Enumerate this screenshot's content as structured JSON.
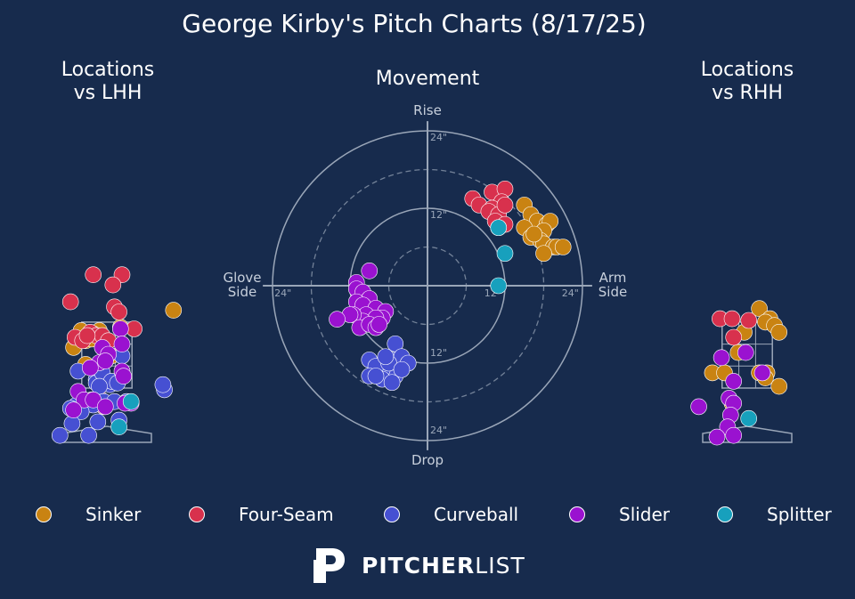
{
  "title": "George Kirby's Pitch Charts (8/17/25)",
  "colors": {
    "background": "#172b4d",
    "Sinker": "#c98312",
    "Four-Seam": "#d8314d",
    "Curveball": "#4650d2",
    "Slider": "#9a12d0",
    "Splitter": "#17a0bd",
    "grid": "#9aa6b8"
  },
  "panels": {
    "lhh_title": "Locations\nvs LHH",
    "movement_title": "Movement",
    "rhh_title": "Locations\nvs RHH"
  },
  "movement_labels": {
    "top": "Rise",
    "bottom": "Drop",
    "left": "Glove\nSide",
    "right": "Arm\nSide",
    "ring_12_top": "12\"",
    "ring_24_top": "24\"",
    "ring_12_bottom": "12\"",
    "ring_24_bottom": "24\"",
    "ring_24_left": "24\"",
    "ring_24_right": "24\"",
    "ring_12_right": "12\""
  },
  "legend": [
    {
      "name": "Sinker"
    },
    {
      "name": "Four-Seam"
    },
    {
      "name": "Curveball"
    },
    {
      "name": "Slider"
    },
    {
      "name": "Splitter"
    }
  ],
  "logo": {
    "bold": "PITCHER",
    "light": "LIST"
  },
  "chart_data": [
    {
      "type": "scatter",
      "title": "Locations\nvs LHH",
      "units": "feet",
      "xlim": [
        -2.45,
        2.45
      ],
      "ylim": [
        -0.25,
        5.1
      ],
      "series": [
        {
          "name": "Sinker",
          "points": [
            [
              -0.85,
              3.2
            ],
            [
              2.2,
              3.8
            ],
            [
              0.45,
              3.3
            ],
            [
              -0.25,
              3.2
            ],
            [
              -0.45,
              3.1
            ],
            [
              -0.3,
              3.0
            ],
            [
              -0.6,
              2.95
            ],
            [
              -1.1,
              2.7
            ],
            [
              -0.7,
              2.9
            ],
            [
              -0.5,
              2.95
            ],
            [
              0.15,
              2.45
            ],
            [
              -0.05,
              2.3
            ],
            [
              -0.7,
              2.2
            ],
            [
              -0.5,
              1.15
            ]
          ]
        },
        {
          "name": "Four-Seam",
          "points": [
            [
              -0.45,
              4.85
            ],
            [
              0.5,
              4.85
            ],
            [
              0.2,
              4.55
            ],
            [
              -1.2,
              4.05
            ],
            [
              0.25,
              3.9
            ],
            [
              0.4,
              3.75
            ],
            [
              -1.05,
              3.0
            ],
            [
              -0.55,
              3.15
            ],
            [
              -0.35,
              3.05
            ],
            [
              -0.15,
              3.05
            ],
            [
              0.05,
              2.9
            ],
            [
              -0.8,
              2.9
            ],
            [
              -0.65,
              3.05
            ],
            [
              0.9,
              3.25
            ],
            [
              -0.25,
              1.2
            ],
            [
              -0.1,
              0.95
            ]
          ]
        },
        {
          "name": "Curveball",
          "points": [
            [
              -0.95,
              2.0
            ],
            [
              -0.35,
              1.75
            ],
            [
              -0.1,
              1.8
            ],
            [
              0.1,
              1.6
            ],
            [
              -0.35,
              1.65
            ],
            [
              0.4,
              1.75
            ],
            [
              0.5,
              2.45
            ],
            [
              -0.15,
              1.95
            ],
            [
              0.15,
              1.7
            ],
            [
              0.35,
              1.65
            ],
            [
              1.9,
              1.45
            ],
            [
              1.85,
              1.6
            ],
            [
              -0.25,
              1.55
            ],
            [
              -1.0,
              1.0
            ],
            [
              -0.65,
              1.05
            ],
            [
              -0.45,
              1.0
            ],
            [
              -0.1,
              1.1
            ],
            [
              0.25,
              1.1
            ],
            [
              0.65,
              1.1
            ],
            [
              -1.2,
              0.9
            ],
            [
              -0.85,
              0.8
            ],
            [
              -1.15,
              0.45
            ],
            [
              -0.3,
              0.5
            ],
            [
              0.4,
              0.55
            ],
            [
              -1.55,
              0.1
            ],
            [
              -0.6,
              0.1
            ]
          ]
        },
        {
          "name": "Slider",
          "points": [
            [
              0.45,
              3.25
            ],
            [
              0.5,
              2.8
            ],
            [
              -0.15,
              2.7
            ],
            [
              0.05,
              2.5
            ],
            [
              -0.25,
              2.25
            ],
            [
              -0.05,
              2.3
            ],
            [
              -0.55,
              2.1
            ],
            [
              0.5,
              2.0
            ],
            [
              0.55,
              1.85
            ],
            [
              -0.95,
              1.4
            ],
            [
              -0.75,
              1.15
            ],
            [
              -0.45,
              1.15
            ],
            [
              0.8,
              1.05
            ],
            [
              0.6,
              1.05
            ],
            [
              -0.05,
              0.95
            ],
            [
              -1.1,
              0.85
            ]
          ]
        },
        {
          "name": "Splitter",
          "points": [
            [
              0.8,
              1.1
            ],
            [
              0.4,
              0.35
            ]
          ]
        }
      ]
    },
    {
      "type": "scatter",
      "title": "Movement",
      "xlabel": "Glove Side / Arm Side (inches)",
      "ylabel": "Drop / Rise (inches)",
      "xlim": [
        -24,
        24
      ],
      "ylim": [
        -24,
        24
      ],
      "series": [
        {
          "name": "Sinker",
          "points": [
            [
              15,
              12.5
            ],
            [
              16,
              11
            ],
            [
              17,
              10
            ],
            [
              18.5,
              9.5
            ],
            [
              19,
              10
            ],
            [
              18,
              8.5
            ],
            [
              15,
              9
            ],
            [
              16,
              7.5
            ],
            [
              17.5,
              7
            ],
            [
              18,
              6.5
            ],
            [
              19.5,
              6
            ],
            [
              16.5,
              8
            ],
            [
              20,
              6
            ],
            [
              18,
              5
            ],
            [
              21,
              6
            ]
          ]
        },
        {
          "name": "Four-Seam",
          "points": [
            [
              7,
              13.5
            ],
            [
              8,
              12.5
            ],
            [
              10,
              14.5
            ],
            [
              12,
              15
            ],
            [
              11.5,
              13
            ],
            [
              10,
              12
            ],
            [
              9.5,
              11.5
            ],
            [
              11,
              11
            ],
            [
              12,
              12.5
            ],
            [
              10.5,
              10
            ],
            [
              12,
              9.5
            ],
            [
              11,
              9
            ]
          ]
        },
        {
          "name": "Curveball",
          "points": [
            [
              -5,
              -9
            ],
            [
              -5,
              -11.5
            ],
            [
              -4,
              -11
            ],
            [
              -3,
              -12
            ],
            [
              -5,
              -14
            ],
            [
              -7,
              -13
            ],
            [
              -9,
              -11.5
            ],
            [
              -8,
              -12.5
            ],
            [
              -6,
              -12
            ],
            [
              -4,
              -13
            ],
            [
              -7,
              -14.5
            ],
            [
              -9,
              -14
            ],
            [
              -5.5,
              -15
            ],
            [
              -8,
              -14
            ],
            [
              -6.5,
              -11
            ]
          ]
        },
        {
          "name": "Slider",
          "points": [
            [
              -9,
              2.3
            ],
            [
              -11,
              0.5
            ],
            [
              -11,
              -0.5
            ],
            [
              -10,
              -1
            ],
            [
              -9,
              -2
            ],
            [
              -11,
              -2.5
            ],
            [
              -10,
              -3
            ],
            [
              -8,
              -3.5
            ],
            [
              -9.5,
              -4.5
            ],
            [
              -6.5,
              -4
            ],
            [
              -7,
              -5
            ],
            [
              -8,
              -5
            ],
            [
              -10,
              -5.5
            ],
            [
              -11.5,
              -4.5
            ],
            [
              -12,
              -4.5
            ],
            [
              -14,
              -5.2
            ],
            [
              -10.5,
              -6.5
            ],
            [
              -9,
              -6
            ],
            [
              -8,
              -6.5
            ],
            [
              -7.5,
              -6
            ]
          ]
        },
        {
          "name": "Splitter",
          "points": [
            [
              11,
              9
            ],
            [
              12,
              5
            ],
            [
              11,
              0
            ]
          ]
        }
      ]
    },
    {
      "type": "scatter",
      "title": "Locations\nvs RHH",
      "units": "feet",
      "xlim": [
        -2.45,
        2.45
      ],
      "ylim": [
        -0.25,
        5.1
      ],
      "series": [
        {
          "name": "Sinker",
          "points": [
            [
              0.4,
              3.85
            ],
            [
              0.75,
              3.55
            ],
            [
              0.6,
              3.45
            ],
            [
              0.9,
              3.35
            ],
            [
              1.05,
              3.15
            ],
            [
              -0.1,
              3.15
            ],
            [
              -0.3,
              2.55
            ],
            [
              -1.15,
              1.95
            ],
            [
              -0.75,
              1.95
            ],
            [
              0.4,
              1.95
            ],
            [
              0.65,
              1.95
            ],
            [
              0.6,
              1.8
            ],
            [
              1.05,
              1.55
            ],
            [
              -0.5,
              1.05
            ]
          ]
        },
        {
          "name": "Four-Seam",
          "points": [
            [
              -0.9,
              3.55
            ],
            [
              -0.5,
              3.55
            ],
            [
              0.05,
              3.5
            ],
            [
              -0.45,
              3.0
            ]
          ]
        },
        {
          "name": "Curveball",
          "points": []
        },
        {
          "name": "Slider",
          "points": [
            [
              -0.05,
              2.55
            ],
            [
              -0.85,
              2.4
            ],
            [
              0.5,
              1.95
            ],
            [
              -0.45,
              1.7
            ],
            [
              -0.6,
              1.2
            ],
            [
              -0.45,
              1.05
            ],
            [
              -1.6,
              0.95
            ],
            [
              -0.55,
              0.7
            ],
            [
              -0.65,
              0.35
            ],
            [
              -1.0,
              0.05
            ],
            [
              -0.45,
              0.1
            ]
          ]
        },
        {
          "name": "Splitter",
          "points": [
            [
              0.05,
              0.6
            ]
          ]
        }
      ]
    }
  ]
}
